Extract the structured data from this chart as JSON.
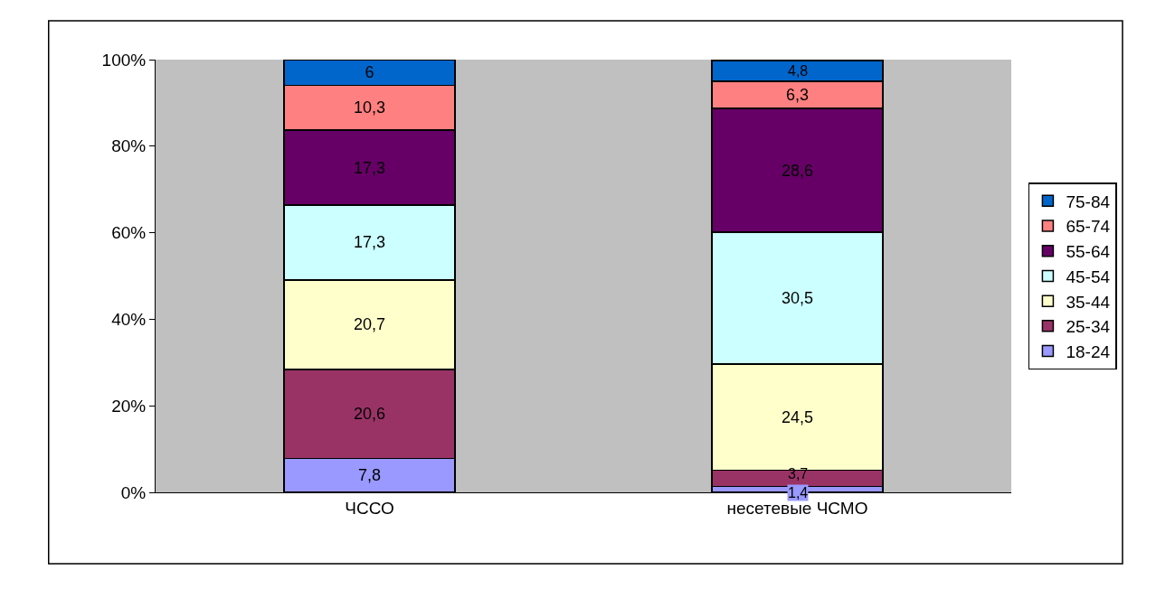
{
  "chart_data": {
    "type": "bar",
    "stacked": true,
    "categories": [
      "ЧССО",
      "несетевые ЧСМО"
    ],
    "series": [
      {
        "name": "18-24",
        "color": "#9999ff",
        "values": [
          7.8,
          1.4
        ],
        "value_labels": [
          "7,8",
          "1,4"
        ]
      },
      {
        "name": "25-34",
        "color": "#993366",
        "values": [
          20.6,
          3.7
        ],
        "value_labels": [
          "20,6",
          "3,7"
        ]
      },
      {
        "name": "35-44",
        "color": "#ffffcc",
        "values": [
          20.7,
          24.5
        ],
        "value_labels": [
          "20,7",
          "24,5"
        ]
      },
      {
        "name": "45-54",
        "color": "#ccffff",
        "values": [
          17.3,
          30.5
        ],
        "value_labels": [
          "17,3",
          "30,5"
        ]
      },
      {
        "name": "55-64",
        "color": "#660066",
        "values": [
          17.3,
          28.6
        ],
        "value_labels": [
          "17,3",
          "28,6"
        ]
      },
      {
        "name": "65-74",
        "color": "#ff8080",
        "values": [
          10.3,
          6.3
        ],
        "value_labels": [
          "10,3",
          "6,3"
        ]
      },
      {
        "name": "75-84",
        "color": "#0066cc",
        "values": [
          6,
          4.8
        ],
        "value_labels": [
          "6",
          "4,8"
        ]
      }
    ],
    "ylim": [
      0,
      100
    ],
    "yticks": [
      {
        "value": 0,
        "label": "0%"
      },
      {
        "value": 20,
        "label": "20%"
      },
      {
        "value": 40,
        "label": "40%"
      },
      {
        "value": 60,
        "label": "60%"
      },
      {
        "value": 80,
        "label": "80%"
      },
      {
        "value": 100,
        "label": "100%"
      }
    ],
    "grid": false,
    "legend": "right"
  }
}
